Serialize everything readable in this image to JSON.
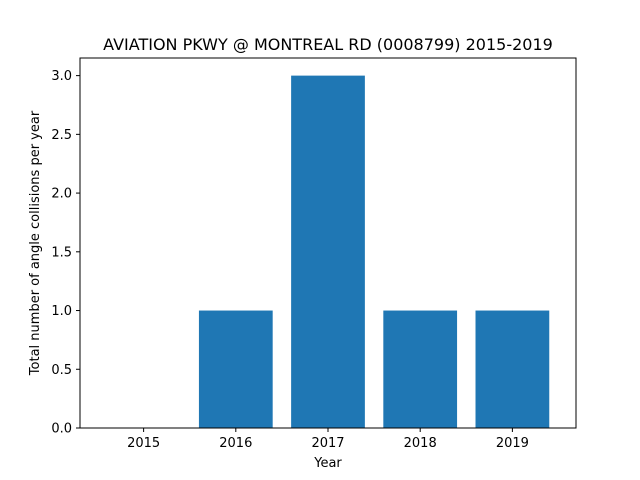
{
  "chart_data": {
    "type": "bar",
    "title": "AVIATION PKWY @ MONTREAL RD (0008799) 2015-2019",
    "xlabel": "Year",
    "ylabel": "Total number of angle collisions per year",
    "categories": [
      "2015",
      "2016",
      "2017",
      "2018",
      "2019"
    ],
    "values": [
      0,
      1,
      3,
      1,
      1
    ],
    "ylim": [
      0,
      3.15
    ],
    "yticks": [
      "0.0",
      "0.5",
      "1.0",
      "1.5",
      "2.0",
      "2.5",
      "3.0"
    ],
    "bar_color": "#1f77b4",
    "grid": false
  }
}
